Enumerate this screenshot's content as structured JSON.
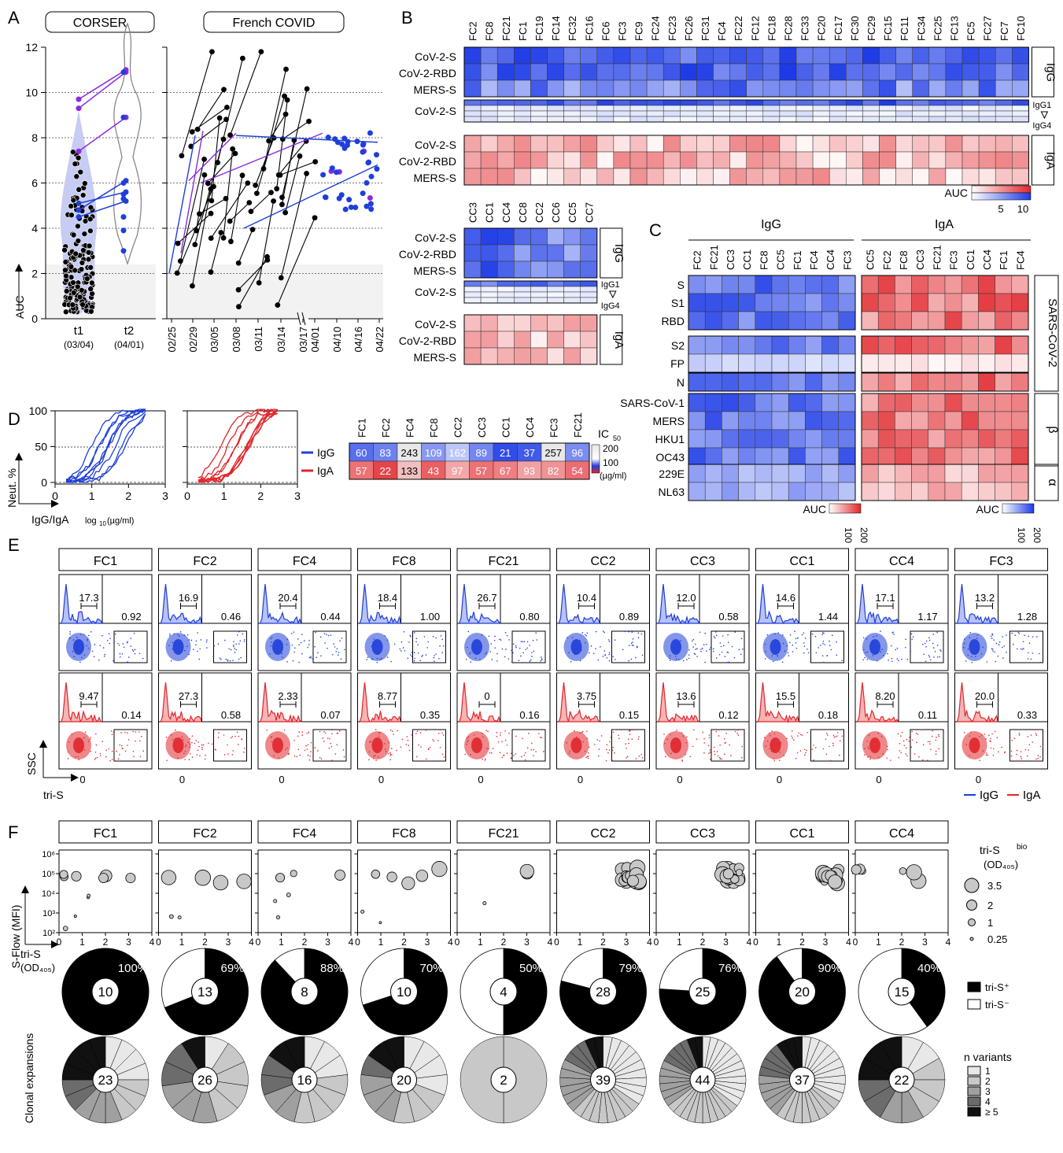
{
  "panels": {
    "A": "A",
    "B": "B",
    "C": "C",
    "D": "D",
    "E": "E",
    "F": "F"
  },
  "colors": {
    "igg": "#1f3fd9",
    "iga": "#e0262b",
    "purple": "#8a2be2",
    "grid": "#999999"
  },
  "panelA": {
    "group1": "CORSER",
    "group2": "French COVID",
    "ylabel": "AUC",
    "yticks": [
      "0",
      "2",
      "4",
      "6",
      "8",
      "10",
      "12"
    ],
    "xlabels": [
      "t1",
      "t2"
    ],
    "xsub": [
      "(03/04)",
      "(04/01)"
    ],
    "dates1": [
      "02/25",
      "02/29",
      "03/05",
      "03/08",
      "03/11",
      "03/14",
      "03/17"
    ],
    "dates2": [
      "04/01",
      "04/10",
      "04/16",
      "04/22"
    ]
  },
  "panelB": {
    "fc_cols": [
      "FC2",
      "FC8",
      "FC21",
      "FC1",
      "FC19",
      "FC14",
      "FC32",
      "FC16",
      "FC6",
      "FC3",
      "FC9",
      "FC24",
      "FC23",
      "FC26",
      "FC31",
      "FC4",
      "FC22",
      "FC12",
      "FC18",
      "FC28",
      "FC33",
      "FC20",
      "FC17",
      "FC30",
      "FC29",
      "FC15",
      "FC11",
      "FC34",
      "FC25",
      "FC13",
      "FC5",
      "FC27",
      "FC7",
      "FC10"
    ],
    "cc_cols": [
      "CC3",
      "CC1",
      "CC4",
      "CC8",
      "CC2",
      "CC6",
      "CC5",
      "CC7"
    ],
    "rows": [
      "CoV-2-S",
      "CoV-2-RBD",
      "MERS-S"
    ],
    "sub_row": "CoV-2-S",
    "iso": {
      "igg": "IgG",
      "iga": "IgA",
      "igg1": "IgG1",
      "igg4": "IgG4"
    },
    "auc": "AUC",
    "auc_ticks": [
      "5",
      "10"
    ]
  },
  "panelC": {
    "igg": "IgG",
    "iga": "IgA",
    "igg_cols": [
      "FC2",
      "FC21",
      "CC3",
      "CC1",
      "FC8",
      "CC5",
      "FC1",
      "FC4",
      "CC4",
      "FC3"
    ],
    "iga_cols": [
      "CC5",
      "FC2",
      "FC8",
      "CC3",
      "FC21",
      "FC3",
      "CC1",
      "CC4",
      "FC1",
      "FC4"
    ],
    "rows": [
      "S",
      "S1",
      "RBD",
      "S2",
      "FP",
      "N",
      "SARS-CoV-1",
      "MERS",
      "HKU1",
      "OC43",
      "229E",
      "NL63"
    ],
    "groups": [
      "SARS-CoV-2",
      "β",
      "α"
    ],
    "auc": "AUC",
    "auc_ticks": [
      "100",
      "200"
    ]
  },
  "panelD": {
    "ylabel": "Neut. %",
    "xlabel": "IgG/IgA",
    "xunit_pre": "log",
    "xunit_sub": "10",
    "xunit_post": "(µg/ml)",
    "yticks": [
      "0",
      "50",
      "100"
    ],
    "xticks": [
      "0",
      "1",
      "2",
      "3"
    ],
    "cols": [
      "FC1",
      "FC2",
      "FC4",
      "FC8",
      "CC2",
      "CC3",
      "CC1",
      "CC4",
      "FC3",
      "FC21"
    ],
    "igg_vals": [
      "60",
      "83",
      "243",
      "109",
      "162",
      "89",
      "21",
      "37",
      "257",
      "96"
    ],
    "iga_vals": [
      "57",
      "22",
      "133",
      "43",
      "97",
      "57",
      "67",
      "93",
      "82",
      "54"
    ],
    "legend": [
      "IgG",
      "IgA"
    ],
    "ic50": "IC",
    "ic50_sub": "50",
    "scale_ticks": [
      "200",
      "100"
    ],
    "unit": "(µg/ml)"
  },
  "panelE": {
    "cols": [
      "FC1",
      "FC2",
      "FC4",
      "FC8",
      "FC21",
      "CC2",
      "CC3",
      "CC1",
      "CC4",
      "FC3"
    ],
    "igg_hist": [
      "17.3",
      "16.9",
      "20.4",
      "18.4",
      "26.7",
      "10.4",
      "12.0",
      "14.6",
      "17.1",
      "13.2"
    ],
    "igg_gate": [
      "0.92",
      "0.46",
      "0.44",
      "1.00",
      "0.80",
      "0.89",
      "0.58",
      "1.44",
      "1.17",
      "1.28"
    ],
    "iga_hist": [
      "9.47",
      "27.3",
      "2.33",
      "8.77",
      "0",
      "3.75",
      "13.6",
      "15.5",
      "8.20",
      "20.0"
    ],
    "iga_gate": [
      "0.14",
      "0.58",
      "0.07",
      "0.35",
      "0.16",
      "0.15",
      "0.12",
      "0.18",
      "0.11",
      "0.33"
    ],
    "zero": "0",
    "ylabel": "SSC",
    "xlabel": "tri-S",
    "legend": [
      "IgG",
      "IgA"
    ]
  },
  "panelF": {
    "cols": [
      "FC1",
      "FC2",
      "FC4",
      "FC8",
      "FC21",
      "CC2",
      "CC3",
      "CC1",
      "CC4"
    ],
    "ylabel": "S-Flow (MFI)",
    "xlabel": "tri-S",
    "xunit": "(OD₄₀₅)",
    "yticks": [
      "10²",
      "10³",
      "10⁴",
      "10⁵",
      "10⁶"
    ],
    "xticks": [
      "0",
      "1",
      "2",
      "3",
      "4"
    ],
    "size_legend_title": "tri-S",
    "size_legend_sup": "bio",
    "size_legend_unit": "(OD₄₀₅)",
    "size_legend": [
      "3.5",
      "2",
      "1",
      "0.25"
    ],
    "pct": [
      "100%",
      "69%",
      "88%",
      "70%",
      "50%",
      "79%",
      "76%",
      "90%",
      "40%"
    ],
    "pct_val": [
      100,
      69,
      88,
      70,
      50,
      79,
      76,
      90,
      40
    ],
    "n": [
      "10",
      "13",
      "8",
      "10",
      "4",
      "28",
      "25",
      "20",
      "15"
    ],
    "pos_legend": [
      "tri-S⁺",
      "tri-S⁻"
    ],
    "clonal_label": "Clonal expansions",
    "clonal_n": [
      "23",
      "26",
      "16",
      "20",
      "2",
      "39",
      "44",
      "37",
      "22"
    ],
    "variants_title": "n variants",
    "variants": [
      "1",
      "2",
      "3",
      "4",
      "≥ 5"
    ]
  }
}
